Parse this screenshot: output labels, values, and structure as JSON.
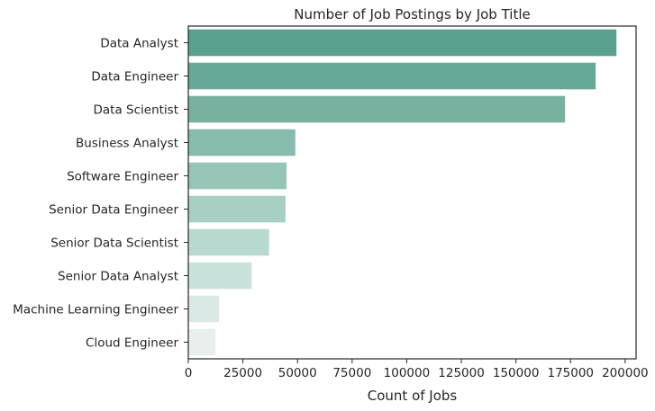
{
  "chart_data": {
    "type": "bar",
    "orientation": "horizontal",
    "title": "Number of Job Postings by Job Title",
    "xlabel": "Count of Jobs",
    "ylabel": "",
    "categories": [
      "Data Analyst",
      "Data Engineer",
      "Data Scientist",
      "Business Analyst",
      "Software Engineer",
      "Senior Data Engineer",
      "Senior Data Scientist",
      "Senior Data Analyst",
      "Machine Learning Engineer",
      "Cloud Engineer"
    ],
    "values": [
      196000,
      186500,
      172500,
      49000,
      45000,
      44500,
      37000,
      29000,
      14000,
      12500
    ],
    "xlim": [
      0,
      205000
    ],
    "xticks": [
      0,
      25000,
      50000,
      75000,
      100000,
      125000,
      150000,
      175000,
      200000
    ],
    "xtick_labels": [
      "0",
      "25000",
      "50000",
      "75000",
      "100000",
      "125000",
      "150000",
      "175000",
      "200000"
    ],
    "grid": false,
    "palette": [
      "#5aa08f",
      "#67a898",
      "#76b1a2",
      "#86bbad",
      "#96c5b8",
      "#a7cfc4",
      "#b8d9d0",
      "#c9e2dc",
      "#dae9e5",
      "#e8efed"
    ]
  }
}
